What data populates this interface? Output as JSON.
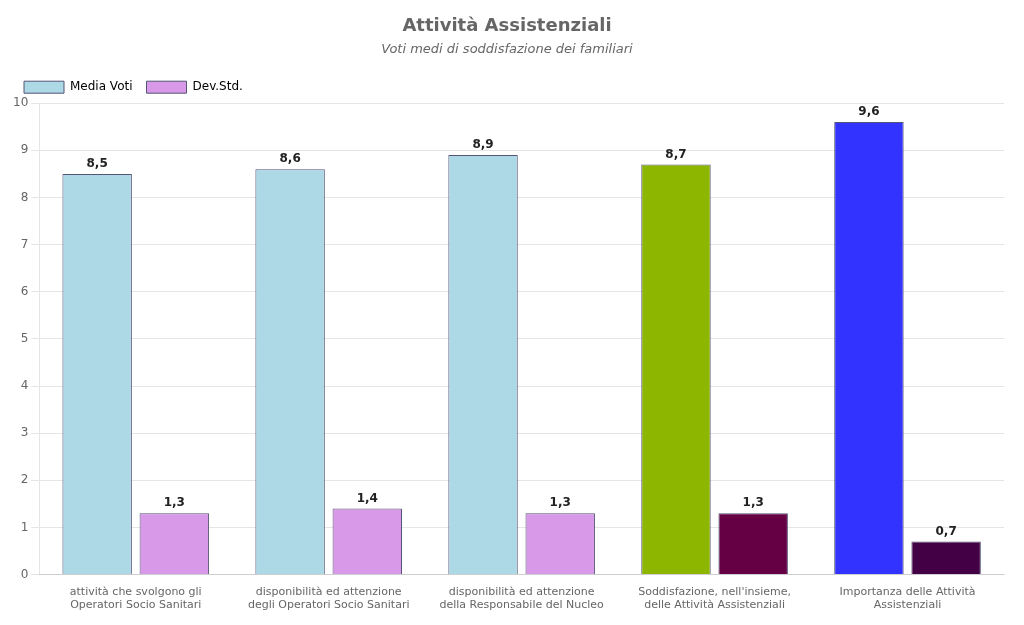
{
  "chart_data": {
    "type": "bar",
    "title": "Attività Assistenziali",
    "subtitle": "Voti medi di soddisfazione dei familiari",
    "categories": [
      "attività che svolgono gli\nOperatori Socio Sanitari",
      "disponibilità ed attenzione\ndegli Operatori Socio Sanitari",
      "disponibilità ed attenzione\ndella Responsabile del Nucleo",
      "Soddisfazione, nell'insieme,\ndelle Attività Assistenziali",
      "Importanza delle Attività\nAssistenziali"
    ],
    "series": [
      {
        "name": "Media Voti",
        "color": "#add8e6",
        "colors": [
          "#add8e6",
          "#add8e6",
          "#add8e6",
          "#8db600",
          "#3333ff"
        ],
        "values": [
          8.5,
          8.6,
          8.9,
          8.7,
          9.6
        ],
        "value_labels": [
          "8,5",
          "8,6",
          "8,9",
          "8,7",
          "9,6"
        ]
      },
      {
        "name": "Dev.Std.",
        "color": "#d899e8",
        "colors": [
          "#d899e8",
          "#d899e8",
          "#d899e8",
          "#660044",
          "#440044"
        ],
        "values": [
          1.3,
          1.4,
          1.3,
          1.3,
          0.7
        ],
        "value_labels": [
          "1,3",
          "1,4",
          "1,3",
          "1,3",
          "0,7"
        ]
      }
    ],
    "ylim": [
      0,
      10
    ],
    "yticks": [
      0,
      1,
      2,
      3,
      4,
      5,
      6,
      7,
      8,
      9,
      10
    ],
    "grid": true,
    "legend": "upper left",
    "data_labels": true
  }
}
